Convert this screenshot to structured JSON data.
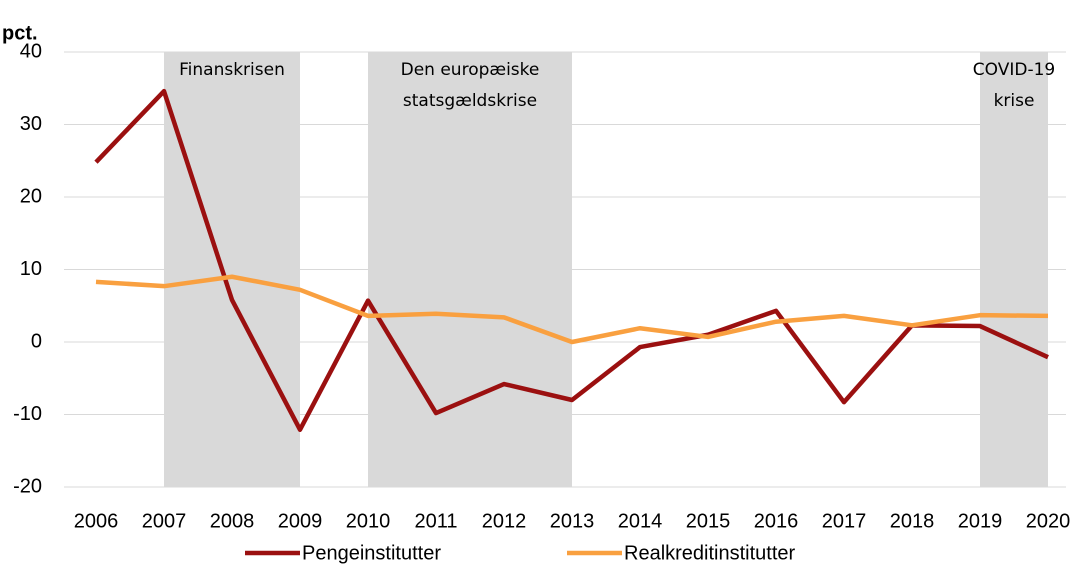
{
  "chart_data": {
    "type": "line",
    "y_label": "pct.",
    "categories": [
      "2006",
      "2007",
      "2008",
      "2009",
      "2010",
      "2011",
      "2012",
      "2013",
      "2014",
      "2015",
      "2016",
      "2017",
      "2018",
      "2019",
      "2020"
    ],
    "series": [
      {
        "name": "Pengeinstitutter",
        "color": "#9b1010",
        "values": [
          24.8,
          34.6,
          5.8,
          -12.1,
          5.7,
          -9.8,
          -5.8,
          -8.0,
          -0.7,
          1.0,
          4.3,
          -8.3,
          2.3,
          2.2,
          -2.1
        ]
      },
      {
        "name": "Realkreditinstitutter",
        "color": "#f9a040",
        "values": [
          8.3,
          7.7,
          9.0,
          7.2,
          3.6,
          3.9,
          3.4,
          0,
          1.9,
          0.7,
          2.8,
          3.6,
          2.3,
          3.7,
          3.6
        ]
      }
    ],
    "ylim": [
      -20,
      40
    ],
    "yticks": [
      -20,
      -10,
      0,
      10,
      20,
      30,
      40
    ],
    "grid": true,
    "shaded_periods": [
      {
        "from": "2007",
        "to": "2009",
        "label": [
          "Finanskrisen"
        ]
      },
      {
        "from": "2010",
        "to": "2013",
        "label": [
          "Den europæiske",
          "statsgældskrise"
        ]
      },
      {
        "from": "2019",
        "to": "2020",
        "label": [
          "COVID-19",
          "krise"
        ]
      }
    ],
    "legend": "bottom"
  }
}
